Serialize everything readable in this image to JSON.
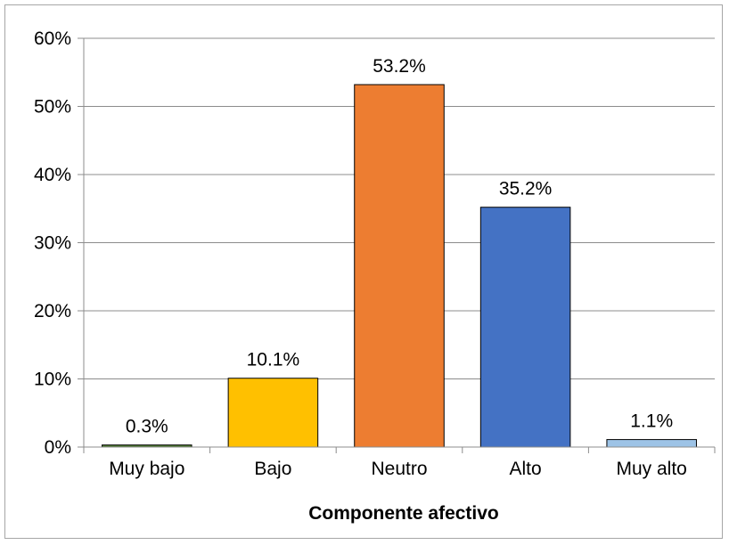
{
  "chart_data": {
    "type": "bar",
    "categories": [
      "Muy bajo",
      "Bajo",
      "Neutro",
      "Alto",
      "Muy alto"
    ],
    "values": [
      0.3,
      10.1,
      53.2,
      35.2,
      1.1
    ],
    "data_labels": [
      "0.3%",
      "10.1%",
      "53.2%",
      "35.2%",
      "1.1%"
    ],
    "bar_colors": [
      "#4e7d2f",
      "#ffc000",
      "#ed7d31",
      "#4472c4",
      "#9dc3e6"
    ],
    "xlabel": "Componente afectivo",
    "ylabel": "",
    "ylim": [
      0,
      60
    ],
    "yticks": [
      0,
      10,
      20,
      30,
      40,
      50,
      60
    ],
    "ytick_labels": [
      "0%",
      "10%",
      "20%",
      "30%",
      "40%",
      "50%",
      "60%"
    ],
    "grid": true,
    "legend": "none"
  }
}
